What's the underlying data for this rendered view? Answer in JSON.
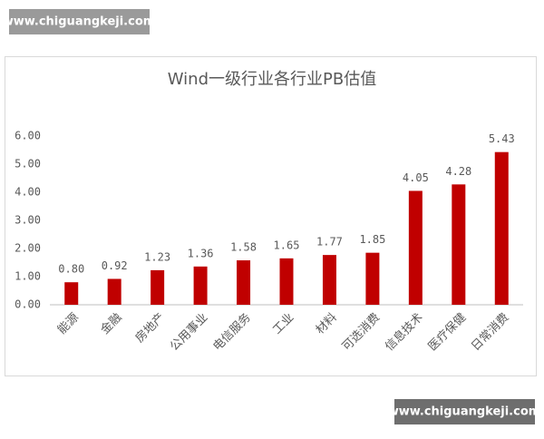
{
  "watermarks": [
    "www.chiguangkeji.com",
    "www.chiguangkeji.com"
  ],
  "chart_data": {
    "type": "bar",
    "title": "Wind一级行业各行业PB估值",
    "categories": [
      "能源",
      "金融",
      "房地产",
      "公用事业",
      "电信服务",
      "工业",
      "材料",
      "可选消费",
      "信息技术",
      "医疗保健",
      "日常消费"
    ],
    "values": [
      0.8,
      0.92,
      1.23,
      1.36,
      1.58,
      1.65,
      1.77,
      1.85,
      4.05,
      4.28,
      5.43
    ],
    "value_labels": [
      "0.80",
      "0.92",
      "1.23",
      "1.36",
      "1.58",
      "1.65",
      "1.77",
      "1.85",
      "4.05",
      "4.28",
      "5.43"
    ],
    "color": "#c00000",
    "ylim": [
      0,
      6
    ],
    "yticks": [
      {
        "value": 0,
        "label": "0.00"
      },
      {
        "value": 1,
        "label": "1.00"
      },
      {
        "value": 2,
        "label": "2.00"
      },
      {
        "value": 3,
        "label": "3.00"
      },
      {
        "value": 4,
        "label": "4.00"
      },
      {
        "value": 5,
        "label": "5.00"
      },
      {
        "value": 6,
        "label": "6.00"
      }
    ],
    "grid": false
  }
}
